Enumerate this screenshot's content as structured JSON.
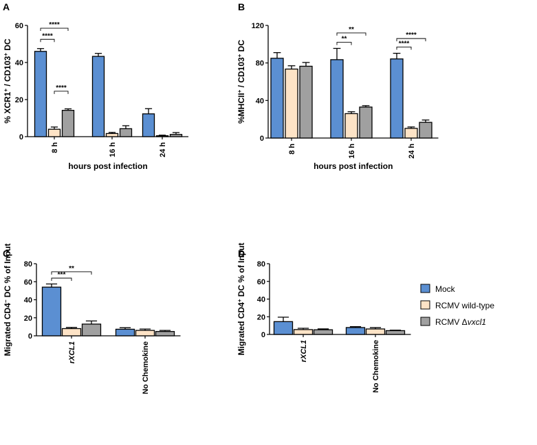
{
  "colors": {
    "mock": "#5b8fd2",
    "wildtype": "#fde3c6",
    "deletion": "#a0a0a0",
    "stroke": "#000000"
  },
  "legend": {
    "items": [
      {
        "key": "mock",
        "label": "Mock"
      },
      {
        "key": "wildtype",
        "label": "RCMV wild-type"
      },
      {
        "key": "deletion",
        "label_prefix": "RCMV Δ",
        "label_italic": "vxcl1"
      }
    ]
  },
  "chart_data": [
    {
      "panel": "A",
      "type": "bar",
      "ylabel_main": "% XCR1",
      "ylabel_sup1": "+",
      "ylabel_mid": " / CD103",
      "ylabel_sup2": "+",
      "ylabel_end": " DC",
      "xlabel": "hours post infection",
      "categories": [
        "8 h",
        "16 h",
        "24 h"
      ],
      "ylim": [
        0,
        60
      ],
      "yticks": [
        "0",
        "20",
        "40",
        "60"
      ],
      "series": [
        {
          "key": "mock",
          "values": [
            46,
            43.3,
            12.3
          ],
          "errors": [
            1.5,
            1.6,
            2.8
          ]
        },
        {
          "key": "wildtype",
          "values": [
            4,
            1.7,
            0.5
          ],
          "errors": [
            1.2,
            0.6,
            0.3
          ]
        },
        {
          "key": "deletion",
          "values": [
            14.2,
            4.3,
            1.2
          ],
          "errors": [
            0.8,
            1.6,
            1.0
          ]
        }
      ],
      "significance": [
        {
          "label": "****",
          "group": 0,
          "from": 0,
          "to": 2,
          "level": 58.5
        },
        {
          "label": "****",
          "group": 0,
          "from": 0,
          "to": 1,
          "level": 52.5
        },
        {
          "label": "****",
          "group": 0,
          "from": 1,
          "to": 2,
          "level": 24.5
        }
      ]
    },
    {
      "panel": "B",
      "type": "bar",
      "ylabel_main": "%MHCII",
      "ylabel_sup1": "+",
      "ylabel_mid": " / CD103",
      "ylabel_sup2": "+",
      "ylabel_end": " DC",
      "xlabel": "hours post infection",
      "categories": [
        "8 h",
        "16 h",
        "24 h"
      ],
      "ylim": [
        0,
        120
      ],
      "yticks": [
        "0",
        "40",
        "80",
        "120"
      ],
      "series": [
        {
          "key": "mock",
          "values": [
            85,
            83.5,
            84.3
          ],
          "errors": [
            6,
            12,
            6
          ]
        },
        {
          "key": "wildtype",
          "values": [
            73.5,
            26,
            10.3
          ],
          "errors": [
            3.5,
            2,
            1.5
          ]
        },
        {
          "key": "deletion",
          "values": [
            76.5,
            33,
            16.7
          ],
          "errors": [
            4,
            1.5,
            2.5
          ]
        }
      ],
      "significance": [
        {
          "label": "**",
          "group": 1,
          "from": 0,
          "to": 2,
          "level": 112
        },
        {
          "label": "**",
          "group": 1,
          "from": 0,
          "to": 1,
          "level": 102
        },
        {
          "label": "****",
          "group": 2,
          "from": 0,
          "to": 2,
          "level": 106
        },
        {
          "label": "****",
          "group": 2,
          "from": 0,
          "to": 1,
          "level": 97
        }
      ]
    },
    {
      "panel": "C",
      "type": "bar",
      "ylabel_main": "Migrated CD4",
      "ylabel_sup1": "−",
      "ylabel_mid": " DC % of Input",
      "ylabel_sup2": "",
      "ylabel_end": "",
      "xlabel": "",
      "categories": [
        "rXCL1",
        "No Chemokine"
      ],
      "category_italic": [
        true,
        false
      ],
      "ylim": [
        0,
        80
      ],
      "yticks": [
        "0",
        "20",
        "40",
        "60",
        "80"
      ],
      "series": [
        {
          "key": "mock",
          "values": [
            54,
            7.3
          ],
          "errors": [
            3.5,
            1.7
          ]
        },
        {
          "key": "wildtype",
          "values": [
            8,
            6
          ],
          "errors": [
            1.3,
            1.5
          ]
        },
        {
          "key": "deletion",
          "values": [
            13,
            4.8
          ],
          "errors": [
            3.5,
            1.2
          ]
        }
      ],
      "significance": [
        {
          "label": "**",
          "group": 0,
          "from": 0,
          "to": 2,
          "level": 71
        },
        {
          "label": "***",
          "group": 0,
          "from": 0,
          "to": 1,
          "level": 64
        }
      ]
    },
    {
      "panel": "D",
      "type": "bar",
      "ylabel_main": "Migrated CD4",
      "ylabel_sup1": "+",
      "ylabel_mid": " DC % of Input",
      "ylabel_sup2": "",
      "ylabel_end": "",
      "xlabel": "",
      "categories": [
        "rXCL1",
        "No Chemokine"
      ],
      "category_italic": [
        true,
        false
      ],
      "ylim": [
        0,
        80
      ],
      "yticks": [
        "0",
        "20",
        "40",
        "60",
        "80"
      ],
      "series": [
        {
          "key": "mock",
          "values": [
            14.5,
            7.8
          ],
          "errors": [
            5,
            1
          ]
        },
        {
          "key": "wildtype",
          "values": [
            5.5,
            6.2
          ],
          "errors": [
            1.5,
            1.5
          ]
        },
        {
          "key": "deletion",
          "values": [
            5.3,
            4.3
          ],
          "errors": [
            1,
            0.5
          ]
        }
      ],
      "significance": []
    }
  ]
}
